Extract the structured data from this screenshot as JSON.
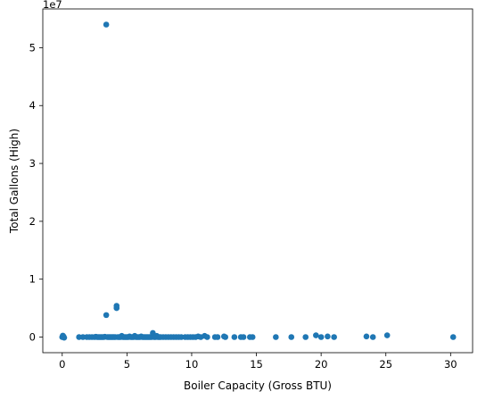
{
  "chart_data": {
    "type": "scatter",
    "title": "",
    "xlabel": "Boiler Capacity (Gross  BTU)",
    "ylabel": "Total Gallons (High)",
    "y_offset_text": "1e7",
    "xlim": [
      -1.5,
      31.7
    ],
    "ylim": [
      -2700000,
      56700000
    ],
    "x_ticks": [
      0,
      5,
      10,
      15,
      20,
      25,
      30
    ],
    "y_ticks": [
      0,
      10000000,
      20000000,
      30000000,
      40000000,
      50000000
    ],
    "x_tick_labels": [
      "0",
      "5",
      "10",
      "15",
      "20",
      "25",
      "30"
    ],
    "y_tick_labels": [
      "0",
      "1",
      "2",
      "3",
      "4",
      "5"
    ],
    "grid": false,
    "legend": "none",
    "point_color": "#1f77b4",
    "series": [
      {
        "points": [
          [
            0.0,
            0
          ],
          [
            0.05,
            250000
          ],
          [
            0.1,
            100000
          ],
          [
            0.15,
            -100000
          ],
          [
            1.3,
            0
          ],
          [
            1.6,
            0
          ],
          [
            1.9,
            0
          ],
          [
            2.1,
            0
          ],
          [
            2.3,
            0
          ],
          [
            2.5,
            0
          ],
          [
            2.6,
            50000
          ],
          [
            2.7,
            0
          ],
          [
            2.8,
            0
          ],
          [
            2.9,
            0
          ],
          [
            3.0,
            0
          ],
          [
            3.1,
            0
          ],
          [
            3.2,
            0
          ],
          [
            3.3,
            50000
          ],
          [
            3.4,
            54000000
          ],
          [
            3.4,
            3800000
          ],
          [
            3.5,
            0
          ],
          [
            3.6,
            0
          ],
          [
            3.7,
            0
          ],
          [
            3.8,
            0
          ],
          [
            3.9,
            0
          ],
          [
            4.0,
            0
          ],
          [
            4.1,
            0
          ],
          [
            4.2,
            5400000
          ],
          [
            4.2,
            5000000
          ],
          [
            4.3,
            0
          ],
          [
            4.4,
            0
          ],
          [
            4.5,
            0
          ],
          [
            4.6,
            200000
          ],
          [
            4.7,
            0
          ],
          [
            4.8,
            0
          ],
          [
            4.9,
            0
          ],
          [
            5.0,
            0
          ],
          [
            5.1,
            0
          ],
          [
            5.2,
            100000
          ],
          [
            5.3,
            0
          ],
          [
            5.4,
            0
          ],
          [
            5.5,
            0
          ],
          [
            5.6,
            200000
          ],
          [
            5.7,
            0
          ],
          [
            5.8,
            0
          ],
          [
            5.9,
            0
          ],
          [
            6.0,
            0
          ],
          [
            6.1,
            100000
          ],
          [
            6.2,
            0
          ],
          [
            6.3,
            0
          ],
          [
            6.4,
            0
          ],
          [
            6.5,
            0
          ],
          [
            6.6,
            0
          ],
          [
            6.7,
            0
          ],
          [
            6.8,
            0
          ],
          [
            6.9,
            0
          ],
          [
            7.0,
            700000
          ],
          [
            7.1,
            0
          ],
          [
            7.2,
            0
          ],
          [
            7.3,
            200000
          ],
          [
            7.4,
            0
          ],
          [
            7.5,
            0
          ],
          [
            7.6,
            0
          ],
          [
            7.8,
            0
          ],
          [
            8.0,
            0
          ],
          [
            8.2,
            0
          ],
          [
            8.4,
            0
          ],
          [
            8.6,
            0
          ],
          [
            8.8,
            0
          ],
          [
            9.0,
            0
          ],
          [
            9.2,
            0
          ],
          [
            9.5,
            0
          ],
          [
            9.7,
            0
          ],
          [
            9.9,
            0
          ],
          [
            10.1,
            0
          ],
          [
            10.3,
            0
          ],
          [
            10.5,
            100000
          ],
          [
            10.7,
            0
          ],
          [
            11.0,
            200000
          ],
          [
            11.2,
            0
          ],
          [
            11.8,
            0
          ],
          [
            12.0,
            0
          ],
          [
            12.5,
            100000
          ],
          [
            12.6,
            0
          ],
          [
            13.3,
            0
          ],
          [
            13.8,
            0
          ],
          [
            14.0,
            0
          ],
          [
            14.5,
            0
          ],
          [
            14.7,
            0
          ],
          [
            16.5,
            0
          ],
          [
            17.7,
            0
          ],
          [
            18.8,
            0
          ],
          [
            19.6,
            300000
          ],
          [
            20.0,
            0
          ],
          [
            20.5,
            100000
          ],
          [
            21.0,
            0
          ],
          [
            23.5,
            100000
          ],
          [
            24.0,
            0
          ],
          [
            25.1,
            300000
          ],
          [
            30.2,
            0
          ]
        ]
      }
    ]
  }
}
